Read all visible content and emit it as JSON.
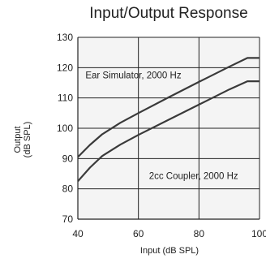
{
  "chart_data": {
    "type": "line",
    "title": "Input/Output Response",
    "xlabel": "Input (dB SPL)",
    "ylabel_lines": [
      "Output",
      "(dB SPL)"
    ],
    "xlim": [
      40,
      100
    ],
    "ylim": [
      70,
      130
    ],
    "xticks": [
      40,
      60,
      80,
      100
    ],
    "yticks": [
      70,
      80,
      90,
      100,
      110,
      120,
      130
    ],
    "grid": true,
    "series": [
      {
        "name": "Ear Simulator, 2000 Hz",
        "x": [
          40,
          44,
          48,
          54,
          60,
          70,
          80,
          90,
          96,
          100
        ],
        "y": [
          90.5,
          94.5,
          98,
          101.8,
          105,
          110.2,
          115.3,
          120.3,
          123.2,
          123.2
        ]
      },
      {
        "name": "2cc Coupler, 2000 Hz",
        "x": [
          40,
          44,
          48,
          54,
          60,
          70,
          80,
          90,
          96,
          100
        ],
        "y": [
          82.5,
          87,
          90.8,
          94.6,
          97.8,
          102.8,
          107.8,
          112.8,
          115.5,
          115.5
        ]
      }
    ],
    "annotations": [
      {
        "text": "Ear Simulator, 2000 Hz",
        "x": 42.5,
        "y": 117.5
      },
      {
        "text": "2cc Coupler, 2000 Hz",
        "x": 63.5,
        "y": 84.3
      }
    ]
  }
}
